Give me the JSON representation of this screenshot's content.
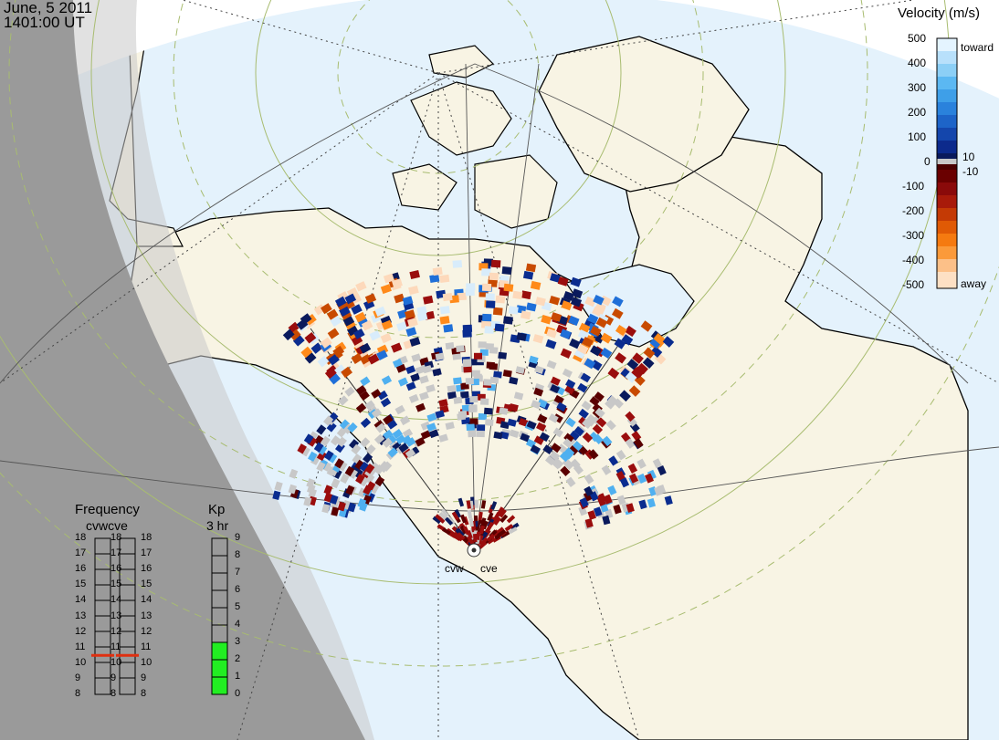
{
  "header": {
    "date": "June, 5 2011",
    "time": "1401:00 UT"
  },
  "velocity_scale": {
    "title": "Velocity (m/s)",
    "ticks": [
      "500",
      "400",
      "300",
      "200",
      "100",
      "0",
      "-100",
      "-200",
      "-300",
      "-400",
      "-500"
    ],
    "inner_ticks": [
      "10",
      "-10"
    ],
    "toward_label": "toward",
    "away_label": "away",
    "colors": {
      "toward": [
        "#d8ecfb",
        "#4fb0f0",
        "#1f6fd8",
        "#0a2c8f",
        "#0a1a5c"
      ],
      "away": [
        "#5a0000",
        "#9a0d0d",
        "#c84a00",
        "#ff8a1a",
        "#fdd9bb"
      ],
      "zero": "#c8c8c8"
    }
  },
  "frequency_panel": {
    "title": "Frequency",
    "subtitle": "cvwcve",
    "ticks": [
      "18",
      "17",
      "16",
      "15",
      "14",
      "13",
      "12",
      "11",
      "10",
      "9",
      "8"
    ],
    "cvw_value_mhz": 10.5,
    "cve_value_mhz": 10.5,
    "marker_color": "#e03010"
  },
  "kp_panel": {
    "title": "Kp",
    "subtitle": "3 hr",
    "ticks": [
      "9",
      "8",
      "7",
      "6",
      "5",
      "4",
      "3",
      "2",
      "1",
      "0"
    ],
    "kp_value": 3,
    "bar_color": "#22ee22"
  },
  "radar_labels": {
    "west": "cvw",
    "east": "cve"
  },
  "colors": {
    "land": "#f8f4e4",
    "ocean": "#e4f2fc",
    "night": "#9a9a9a",
    "dusk": "#c8c8c8",
    "coast": "#000000",
    "lat_circle": "#a8bc70",
    "grid": "#444444"
  }
}
